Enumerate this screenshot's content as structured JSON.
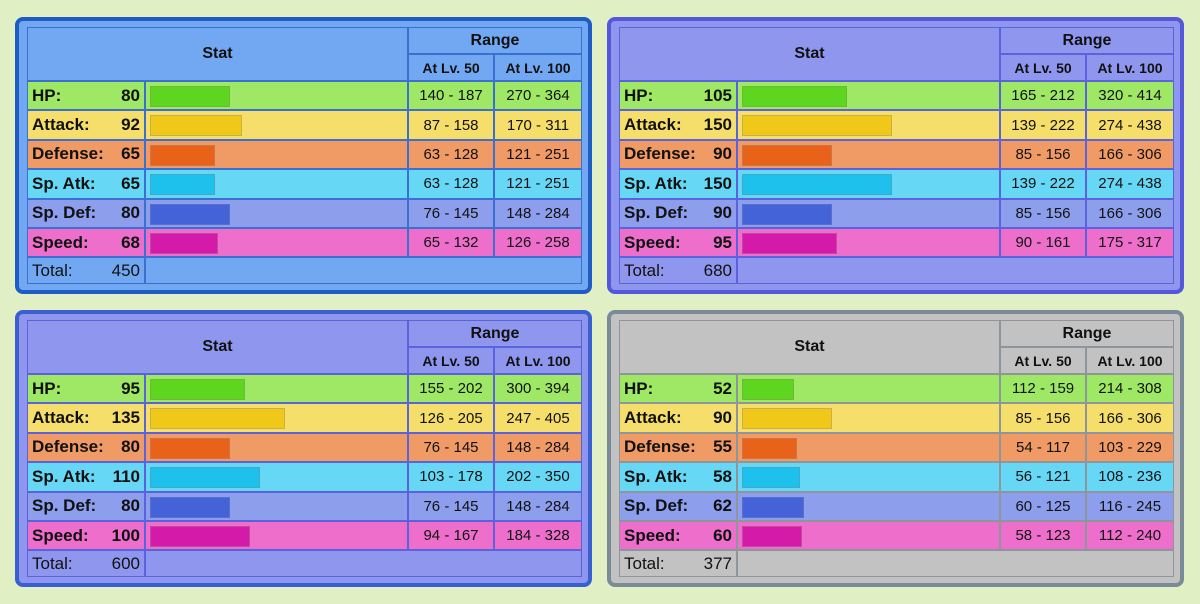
{
  "panels": [
    {
      "header": {
        "stat": "Stat",
        "range": "Range",
        "lv50": "At Lv. 50",
        "lv100": "At Lv. 100"
      },
      "rows": [
        {
          "label": "HP:",
          "value": 80,
          "lv50": "140 - 187",
          "lv100": "270 - 364"
        },
        {
          "label": "Attack:",
          "value": 92,
          "lv50": "87 - 158",
          "lv100": "170 - 311"
        },
        {
          "label": "Defense:",
          "value": 65,
          "lv50": "63 - 128",
          "lv100": "121 - 251"
        },
        {
          "label": "Sp. Atk:",
          "value": 65,
          "lv50": "63 - 128",
          "lv100": "121 - 251"
        },
        {
          "label": "Sp. Def:",
          "value": 80,
          "lv50": "76 - 145",
          "lv100": "148 - 284"
        },
        {
          "label": "Speed:",
          "value": 68,
          "lv50": "65 - 132",
          "lv100": "126 - 258"
        }
      ],
      "total": {
        "label": "Total:",
        "value": 450
      }
    },
    {
      "header": {
        "stat": "Stat",
        "range": "Range",
        "lv50": "At Lv. 50",
        "lv100": "At Lv. 100"
      },
      "rows": [
        {
          "label": "HP:",
          "value": 105,
          "lv50": "165 - 212",
          "lv100": "320 - 414"
        },
        {
          "label": "Attack:",
          "value": 150,
          "lv50": "139 - 222",
          "lv100": "274 - 438"
        },
        {
          "label": "Defense:",
          "value": 90,
          "lv50": "85 - 156",
          "lv100": "166 - 306"
        },
        {
          "label": "Sp. Atk:",
          "value": 150,
          "lv50": "139 - 222",
          "lv100": "274 - 438"
        },
        {
          "label": "Sp. Def:",
          "value": 90,
          "lv50": "85 - 156",
          "lv100": "166 - 306"
        },
        {
          "label": "Speed:",
          "value": 95,
          "lv50": "90 - 161",
          "lv100": "175 - 317"
        }
      ],
      "total": {
        "label": "Total:",
        "value": 680
      }
    },
    {
      "header": {
        "stat": "Stat",
        "range": "Range",
        "lv50": "At Lv. 50",
        "lv100": "At Lv. 100"
      },
      "rows": [
        {
          "label": "HP:",
          "value": 95,
          "lv50": "155 - 202",
          "lv100": "300 - 394"
        },
        {
          "label": "Attack:",
          "value": 135,
          "lv50": "126 - 205",
          "lv100": "247 - 405"
        },
        {
          "label": "Defense:",
          "value": 80,
          "lv50": "76 - 145",
          "lv100": "148 - 284"
        },
        {
          "label": "Sp. Atk:",
          "value": 110,
          "lv50": "103 - 178",
          "lv100": "202 - 350"
        },
        {
          "label": "Sp. Def:",
          "value": 80,
          "lv50": "76 - 145",
          "lv100": "148 - 284"
        },
        {
          "label": "Speed:",
          "value": 100,
          "lv50": "94 - 167",
          "lv100": "184 - 328"
        }
      ],
      "total": {
        "label": "Total:",
        "value": 600
      }
    },
    {
      "header": {
        "stat": "Stat",
        "range": "Range",
        "lv50": "At Lv. 50",
        "lv100": "At Lv. 100"
      },
      "rows": [
        {
          "label": "HP:",
          "value": 52,
          "lv50": "112 - 159",
          "lv100": "214 - 308"
        },
        {
          "label": "Attack:",
          "value": 90,
          "lv50": "85 - 156",
          "lv100": "166 - 306"
        },
        {
          "label": "Defense:",
          "value": 55,
          "lv50": "54 - 117",
          "lv100": "103 - 229"
        },
        {
          "label": "Sp. Atk:",
          "value": 58,
          "lv50": "56 - 121",
          "lv100": "108 - 236"
        },
        {
          "label": "Sp. Def:",
          "value": 62,
          "lv50": "60 - 125",
          "lv100": "116 - 245"
        },
        {
          "label": "Speed:",
          "value": 60,
          "lv50": "58 - 123",
          "lv100": "112 - 240"
        }
      ],
      "total": {
        "label": "Total:",
        "value": 377
      }
    }
  ]
}
